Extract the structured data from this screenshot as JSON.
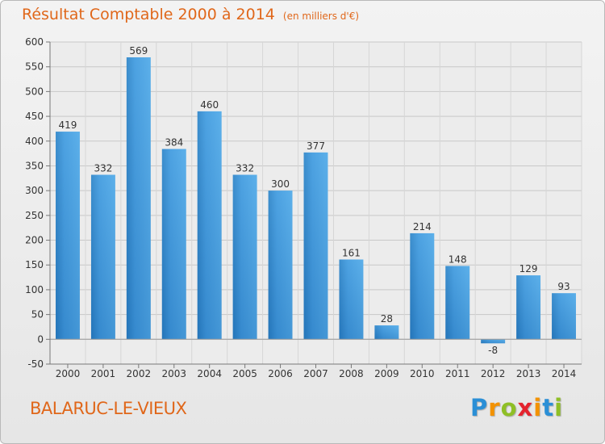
{
  "header": {
    "title": "Résultat Comptable 2000 à 2014",
    "subtitle": "(en milliers d'€)"
  },
  "footer": {
    "commune": "BALARUC-LE-VIEUX",
    "logo_letters": [
      "P",
      "r",
      "o",
      "x",
      "i",
      "t",
      "i"
    ],
    "logo_colors": [
      "#2b8fd6",
      "#f39200",
      "#8fbf26",
      "#e4232e",
      "#f39200",
      "#2b8fd6",
      "#8fbf26"
    ]
  },
  "chart_data": {
    "type": "bar",
    "title": "Résultat Comptable 2000 à 2014",
    "subtitle": "(en milliers d'€)",
    "xlabel": "",
    "ylabel": "",
    "categories": [
      "2000",
      "2001",
      "2002",
      "2003",
      "2004",
      "2005",
      "2006",
      "2007",
      "2008",
      "2009",
      "2010",
      "2011",
      "2012",
      "2013",
      "2014"
    ],
    "values": [
      419,
      332,
      569,
      384,
      460,
      332,
      300,
      377,
      161,
      28,
      214,
      148,
      -8,
      129,
      93
    ],
    "value_labels": [
      "419",
      "332",
      "569",
      "384",
      "460",
      "332",
      "300",
      "377",
      "161",
      "28",
      "214",
      "148",
      "-8",
      "129",
      "93"
    ],
    "ylim": [
      -50,
      600
    ],
    "yticks": [
      -50,
      0,
      50,
      100,
      150,
      200,
      250,
      300,
      350,
      400,
      450,
      500,
      550,
      600
    ],
    "grid": true,
    "bar_color": "#3d8fd4",
    "grid_color": "#c8c8c8"
  }
}
